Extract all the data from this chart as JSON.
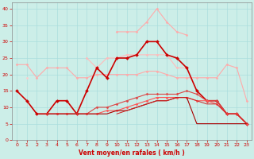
{
  "xlabel": "Vent moyen/en rafales ( km/h )",
  "x": [
    0,
    1,
    2,
    3,
    4,
    5,
    6,
    7,
    8,
    9,
    10,
    11,
    12,
    13,
    14,
    15,
    16,
    17,
    18,
    19,
    20,
    21,
    22,
    23
  ],
  "series": [
    {
      "color": "#ffaaaa",
      "linewidth": 0.8,
      "marker": "D",
      "markersize": 1.5,
      "data": [
        null,
        null,
        null,
        null,
        null,
        null,
        null,
        null,
        null,
        null,
        33,
        33,
        33,
        36,
        40,
        36,
        33,
        32,
        null,
        null,
        null,
        null,
        null,
        null
      ]
    },
    {
      "color": "#ffaaaa",
      "linewidth": 0.8,
      "marker": "D",
      "markersize": 1.5,
      "data": [
        23,
        23,
        19,
        22,
        22,
        22,
        19,
        19,
        20,
        20,
        20,
        20,
        20,
        21,
        21,
        20,
        19,
        19,
        19,
        19,
        19,
        23,
        22,
        12
      ]
    },
    {
      "color": "#ffcccc",
      "linewidth": 0.8,
      "marker": "D",
      "markersize": 1.5,
      "data": [
        null,
        19,
        null,
        null,
        null,
        null,
        null,
        null,
        null,
        null,
        null,
        null,
        null,
        null,
        null,
        null,
        null,
        null,
        null,
        null,
        null,
        null,
        null,
        null
      ]
    },
    {
      "color": "#ffbbbb",
      "linewidth": 0.8,
      "marker": "D",
      "markersize": 1.5,
      "data": [
        null,
        null,
        null,
        null,
        null,
        null,
        null,
        25,
        22,
        25,
        25,
        26,
        26,
        26,
        26,
        26,
        22,
        22,
        null,
        null,
        null,
        null,
        null,
        null
      ]
    },
    {
      "color": "#cc0000",
      "linewidth": 1.2,
      "marker": "D",
      "markersize": 2.0,
      "data": [
        15,
        12,
        8,
        8,
        12,
        12,
        8,
        15,
        22,
        19,
        25,
        25,
        26,
        30,
        30,
        26,
        25,
        22,
        15,
        12,
        12,
        8,
        8,
        5
      ]
    },
    {
      "color": "#dd4444",
      "linewidth": 0.8,
      "marker": "D",
      "markersize": 1.5,
      "data": [
        null,
        null,
        null,
        8,
        8,
        8,
        8,
        8,
        10,
        10,
        11,
        12,
        13,
        14,
        14,
        14,
        14,
        15,
        14,
        12,
        12,
        8,
        8,
        5
      ]
    },
    {
      "color": "#ff5555",
      "linewidth": 0.8,
      "marker": "D",
      "markersize": 1.5,
      "data": [
        null,
        null,
        null,
        8,
        8,
        8,
        8,
        8,
        8,
        9,
        9,
        10,
        11,
        12,
        13,
        13,
        13,
        13,
        12,
        12,
        11,
        8,
        8,
        5
      ]
    },
    {
      "color": "#aa0000",
      "linewidth": 0.8,
      "marker": null,
      "markersize": 0,
      "data": [
        null,
        null,
        null,
        8,
        8,
        8,
        8,
        8,
        8,
        8,
        9,
        9,
        10,
        11,
        12,
        12,
        13,
        13,
        5,
        5,
        5,
        5,
        5,
        5
      ]
    },
    {
      "color": "#cc2222",
      "linewidth": 0.7,
      "marker": null,
      "markersize": 0,
      "data": [
        null,
        null,
        null,
        null,
        null,
        null,
        null,
        null,
        null,
        null,
        8,
        9,
        10,
        11,
        12,
        12,
        13,
        13,
        12,
        11,
        11,
        8,
        8,
        5
      ]
    }
  ],
  "ylim": [
    0,
    42
  ],
  "xlim": [
    -0.5,
    23.5
  ],
  "yticks": [
    0,
    5,
    10,
    15,
    20,
    25,
    30,
    35,
    40
  ],
  "xticks": [
    0,
    1,
    2,
    3,
    4,
    5,
    6,
    7,
    8,
    9,
    10,
    11,
    12,
    13,
    14,
    15,
    16,
    17,
    18,
    19,
    20,
    21,
    22,
    23
  ],
  "bg_color": "#cceee8",
  "grid_color": "#aadddd",
  "ylabel_color": "#cc0000",
  "tick_color": "#cc0000",
  "spine_color": "#888888"
}
